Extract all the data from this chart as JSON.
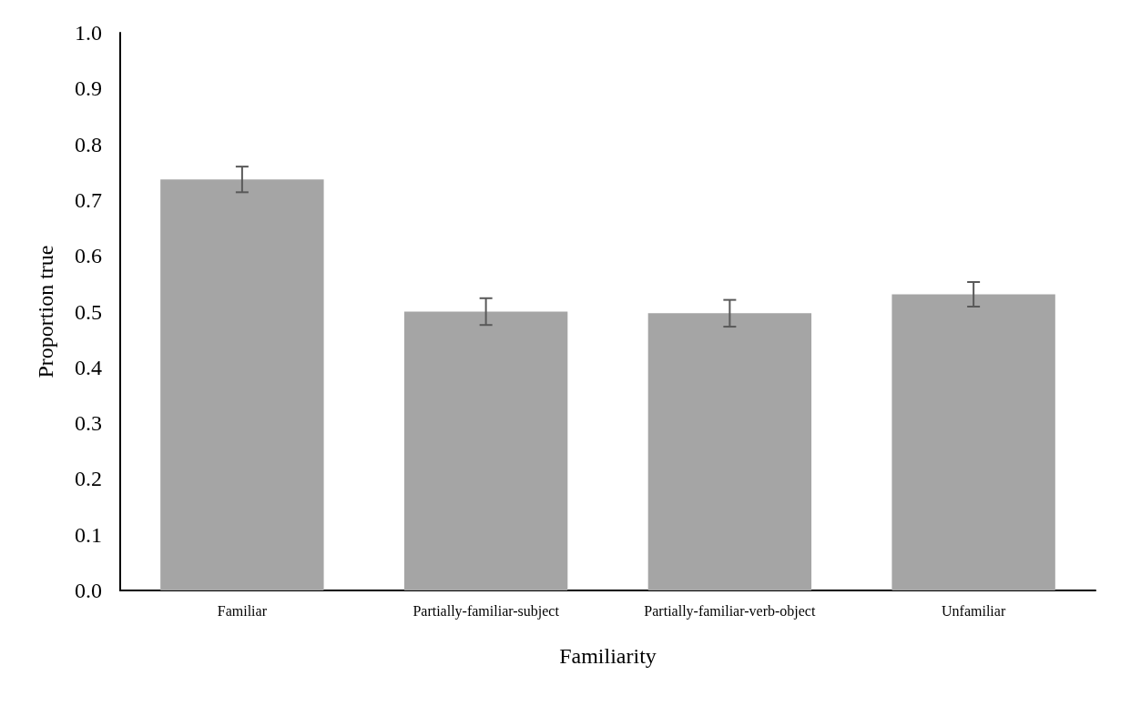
{
  "chart_data": {
    "type": "bar",
    "xlabel": "Familiarity",
    "ylabel": "Proportion true",
    "categories": [
      "Familiar",
      "Partially-familiar-subject",
      "Partially-familiar-verb-object",
      "Unfamiliar"
    ],
    "values": [
      0.737,
      0.5,
      0.497,
      0.531
    ],
    "errors": [
      0.023,
      0.024,
      0.024,
      0.022
    ],
    "color": "#a5a5a5",
    "ylim": [
      0,
      1
    ],
    "yticks": [
      {
        "value": 0,
        "label": "0.0"
      },
      0.1,
      0.2,
      0.3,
      0.4,
      0.5,
      0.6,
      0.7,
      0.8,
      0.9,
      {
        "value": 1,
        "label": "1.0"
      }
    ],
    "grid": false
  }
}
